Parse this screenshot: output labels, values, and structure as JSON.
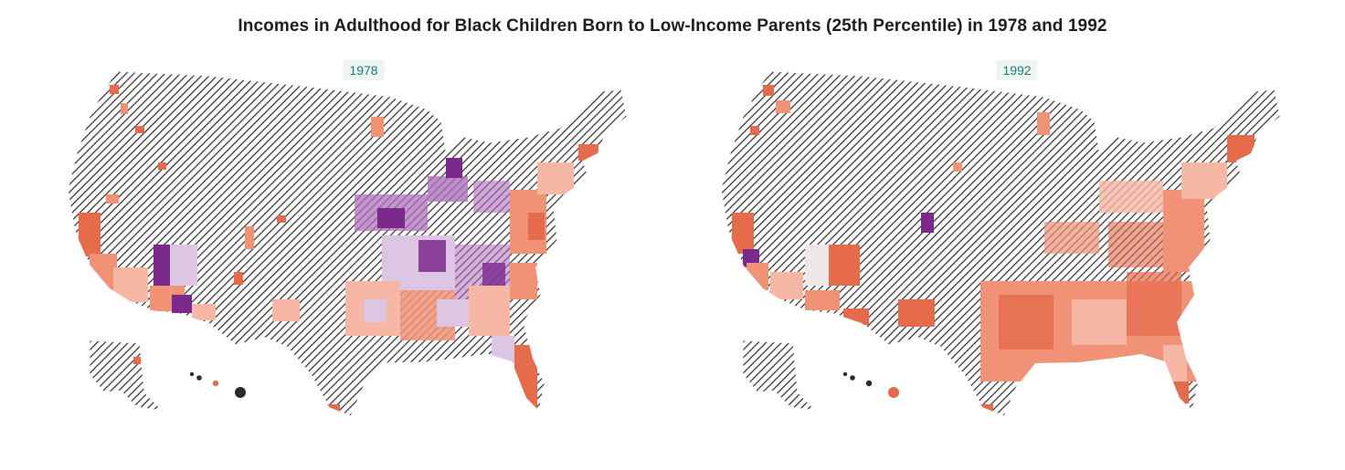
{
  "title": "Incomes in Adulthood for Black Children Born to Low-Income Parents (25th Percentile) in 1978 and 1992",
  "panels": [
    {
      "year_label": "1978"
    },
    {
      "year_label": "1992"
    }
  ],
  "colors": {
    "no_data_hatch": "#2a2a2a",
    "no_data_bg": "#ffffff",
    "badge_bg": "#eef4f2",
    "badge_text": "#197e73",
    "purple_dark": "#7b2a8c",
    "purple_mid": "#b070be",
    "purple_light": "#dcc6e3",
    "neutral": "#efe6e7",
    "orange_light": "#f6b7a5",
    "orange_mid": "#f09276",
    "orange_dark": "#e56b4b"
  }
}
